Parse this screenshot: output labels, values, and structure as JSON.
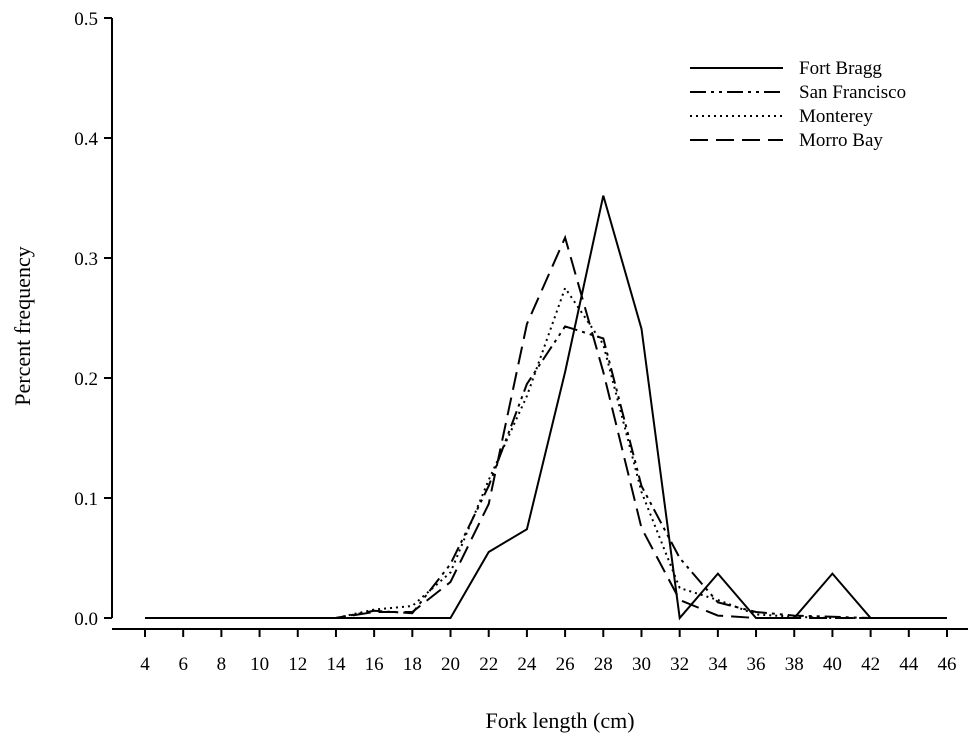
{
  "chart_data": {
    "type": "line",
    "xlabel": "Fork length (cm)",
    "ylabel": "Percent frequency",
    "xlim": [
      4,
      46
    ],
    "ylim": [
      0,
      0.5
    ],
    "xticks": [
      "4",
      "6",
      "8",
      "10",
      "12",
      "14",
      "16",
      "18",
      "20",
      "22",
      "24",
      "26",
      "28",
      "30",
      "32",
      "34",
      "36",
      "38",
      "40",
      "42",
      "44",
      "46"
    ],
    "yticks": [
      "0.0",
      "0.1",
      "0.2",
      "0.3",
      "0.4",
      "0.5"
    ],
    "grid": false,
    "legend_position": "top-right",
    "x": [
      4,
      6,
      8,
      10,
      12,
      14,
      16,
      18,
      20,
      22,
      24,
      26,
      28,
      30,
      32,
      34,
      36,
      38,
      40,
      42,
      44,
      46
    ],
    "series": [
      {
        "name": "Fort Bragg",
        "dash": "solid",
        "values": [
          0,
          0,
          0,
          0,
          0,
          0,
          0,
          0,
          0,
          0.055,
          0.074,
          0.205,
          0.352,
          0.241,
          0,
          0.037,
          0,
          0,
          0.037,
          0,
          0,
          0
        ]
      },
      {
        "name": "San Francisco",
        "dash": "dashdotdot",
        "values": [
          0,
          0,
          0,
          0,
          0,
          0,
          0.006,
          0.004,
          0.045,
          0.11,
          0.195,
          0.243,
          0.233,
          0.11,
          0.05,
          0.013,
          0.005,
          0.002,
          0.001,
          0,
          0,
          0
        ]
      },
      {
        "name": "Monterey",
        "dash": "dotted",
        "values": [
          0,
          0,
          0,
          0,
          0,
          0,
          0.007,
          0.01,
          0.038,
          0.115,
          0.185,
          0.275,
          0.228,
          0.105,
          0.025,
          0.015,
          0.003,
          0.001,
          0,
          0,
          0,
          0
        ]
      },
      {
        "name": "Morro Bay",
        "dash": "dashed",
        "values": [
          0,
          0,
          0,
          0,
          0,
          0,
          0.005,
          0.005,
          0.03,
          0.095,
          0.245,
          0.317,
          0.205,
          0.075,
          0.015,
          0.002,
          0,
          0,
          0,
          0,
          0,
          0
        ]
      }
    ]
  }
}
